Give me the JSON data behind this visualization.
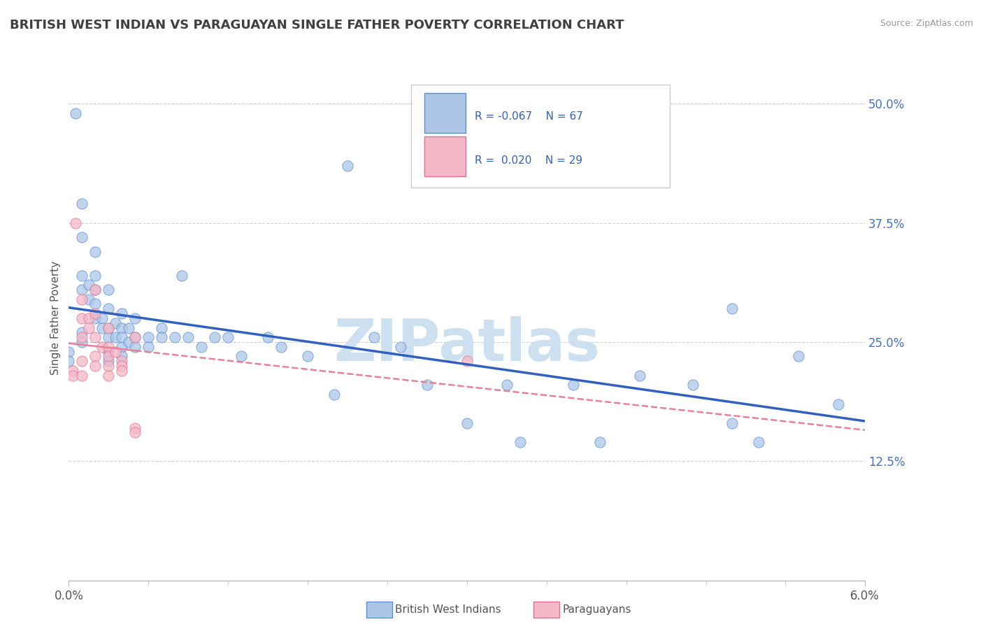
{
  "title": "BRITISH WEST INDIAN VS PARAGUAYAN SINGLE FATHER POVERTY CORRELATION CHART",
  "source": "Source: ZipAtlas.com",
  "ylabel": "Single Father Poverty",
  "xlim": [
    0.0,
    0.06
  ],
  "ylim": [
    0.0,
    0.55
  ],
  "xtick_positions": [
    0.0,
    0.06
  ],
  "xtick_labels": [
    "0.0%",
    "6.0%"
  ],
  "ytick_values": [
    0.125,
    0.25,
    0.375,
    0.5
  ],
  "ytick_labels": [
    "12.5%",
    "25.0%",
    "37.5%",
    "50.0%"
  ],
  "bwi_color": "#adc6e8",
  "par_color": "#f5b8c8",
  "bwi_edge_color": "#5b8fd4",
  "par_edge_color": "#e07090",
  "bwi_line_color": "#3060c0",
  "par_line_color": "#e88098",
  "grid_color": "#d0d0d0",
  "title_color": "#404040",
  "legend_text_color": "#3060c0",
  "watermark_color": "#cce0f0",
  "bwi_points": [
    [
      0.0005,
      0.49
    ],
    [
      0.001,
      0.395
    ],
    [
      0.001,
      0.36
    ],
    [
      0.001,
      0.32
    ],
    [
      0.001,
      0.305
    ],
    [
      0.0015,
      0.31
    ],
    [
      0.0015,
      0.295
    ],
    [
      0.002,
      0.345
    ],
    [
      0.002,
      0.32
    ],
    [
      0.002,
      0.305
    ],
    [
      0.002,
      0.29
    ],
    [
      0.002,
      0.275
    ],
    [
      0.0025,
      0.275
    ],
    [
      0.0025,
      0.265
    ],
    [
      0.003,
      0.305
    ],
    [
      0.003,
      0.285
    ],
    [
      0.003,
      0.265
    ],
    [
      0.003,
      0.255
    ],
    [
      0.003,
      0.24
    ],
    [
      0.003,
      0.23
    ],
    [
      0.0035,
      0.27
    ],
    [
      0.0035,
      0.255
    ],
    [
      0.004,
      0.28
    ],
    [
      0.004,
      0.265
    ],
    [
      0.004,
      0.255
    ],
    [
      0.004,
      0.245
    ],
    [
      0.004,
      0.235
    ],
    [
      0.0045,
      0.265
    ],
    [
      0.0045,
      0.25
    ],
    [
      0.005,
      0.275
    ],
    [
      0.005,
      0.255
    ],
    [
      0.005,
      0.245
    ],
    [
      0.006,
      0.255
    ],
    [
      0.006,
      0.245
    ],
    [
      0.007,
      0.265
    ],
    [
      0.007,
      0.255
    ],
    [
      0.008,
      0.255
    ],
    [
      0.0085,
      0.32
    ],
    [
      0.009,
      0.255
    ],
    [
      0.01,
      0.245
    ],
    [
      0.011,
      0.255
    ],
    [
      0.012,
      0.255
    ],
    [
      0.013,
      0.235
    ],
    [
      0.015,
      0.255
    ],
    [
      0.016,
      0.245
    ],
    [
      0.018,
      0.235
    ],
    [
      0.02,
      0.195
    ],
    [
      0.021,
      0.435
    ],
    [
      0.023,
      0.255
    ],
    [
      0.025,
      0.245
    ],
    [
      0.027,
      0.205
    ],
    [
      0.03,
      0.165
    ],
    [
      0.033,
      0.205
    ],
    [
      0.034,
      0.145
    ],
    [
      0.038,
      0.205
    ],
    [
      0.04,
      0.145
    ],
    [
      0.043,
      0.215
    ],
    [
      0.047,
      0.205
    ],
    [
      0.05,
      0.285
    ],
    [
      0.05,
      0.165
    ],
    [
      0.052,
      0.145
    ],
    [
      0.055,
      0.235
    ],
    [
      0.058,
      0.185
    ],
    [
      0.0,
      0.24
    ],
    [
      0.0,
      0.23
    ],
    [
      0.001,
      0.26
    ],
    [
      0.001,
      0.25
    ]
  ],
  "par_points": [
    [
      0.0003,
      0.22
    ],
    [
      0.0003,
      0.215
    ],
    [
      0.0005,
      0.375
    ],
    [
      0.001,
      0.295
    ],
    [
      0.001,
      0.275
    ],
    [
      0.001,
      0.255
    ],
    [
      0.001,
      0.23
    ],
    [
      0.001,
      0.215
    ],
    [
      0.0015,
      0.275
    ],
    [
      0.0015,
      0.265
    ],
    [
      0.002,
      0.305
    ],
    [
      0.002,
      0.28
    ],
    [
      0.002,
      0.255
    ],
    [
      0.002,
      0.235
    ],
    [
      0.002,
      0.225
    ],
    [
      0.0025,
      0.245
    ],
    [
      0.003,
      0.265
    ],
    [
      0.003,
      0.245
    ],
    [
      0.003,
      0.235
    ],
    [
      0.003,
      0.225
    ],
    [
      0.003,
      0.215
    ],
    [
      0.0035,
      0.24
    ],
    [
      0.004,
      0.23
    ],
    [
      0.004,
      0.225
    ],
    [
      0.004,
      0.22
    ],
    [
      0.005,
      0.255
    ],
    [
      0.005,
      0.16
    ],
    [
      0.005,
      0.155
    ],
    [
      0.03,
      0.23
    ]
  ]
}
